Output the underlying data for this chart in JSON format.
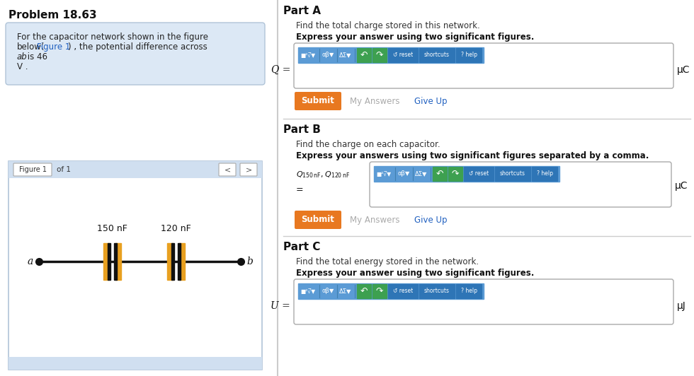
{
  "bg_color": "#ffffff",
  "left_panel_bg": "#dce8f5",
  "left_panel_border": "#b0c4d8",
  "title": "Problem 18.63",
  "problem_text_line1": "For the capacitor network shown in the figure",
  "problem_text_line2a": "below(",
  "problem_text_figure1": "Figure 1",
  "problem_text_line2b": ") , the potential difference across",
  "problem_text_italic": "ab",
  "problem_text_line3a": " is 46",
  "problem_text_line4": "V .",
  "figure_label": "Figure 1",
  "of_label": "of 1",
  "cap1_label": "150 nF",
  "cap2_label": "120 nF",
  "node_a": "a",
  "node_b": "b",
  "cap_color_gold": "#e8a020",
  "cap_color_black": "#111111",
  "wire_color": "#111111",
  "part_a_title": "Part A",
  "part_a_text": "Find the total charge stored in this network.",
  "part_a_bold": "Express your answer using two significant figures.",
  "part_a_eq": "Q =",
  "part_a_unit": "μC",
  "part_b_title": "Part B",
  "part_b_text": "Find the charge on each capacitor.",
  "part_b_bold": "Express your answers using two significant figures separated by a comma.",
  "part_b_unit": "μC",
  "part_c_title": "Part C",
  "part_c_text": "Find the total energy stored in the network.",
  "part_c_bold": "Express your answer using two significant figures.",
  "part_c_eq": "U =",
  "part_c_unit": "μJ",
  "toolbar_bg": "#5b9bd5",
  "toolbar_btn_green": "#3da050",
  "toolbar_btn_blue": "#2e75b6",
  "submit_color": "#e87820",
  "divider_color": "#cccccc",
  "link_color": "#2060c0",
  "myanswers_color": "#aaaaaa",
  "giveup_color": "#2060c0",
  "header_bar_color": "#d0dff0",
  "figure_border": "#b0c4d8"
}
